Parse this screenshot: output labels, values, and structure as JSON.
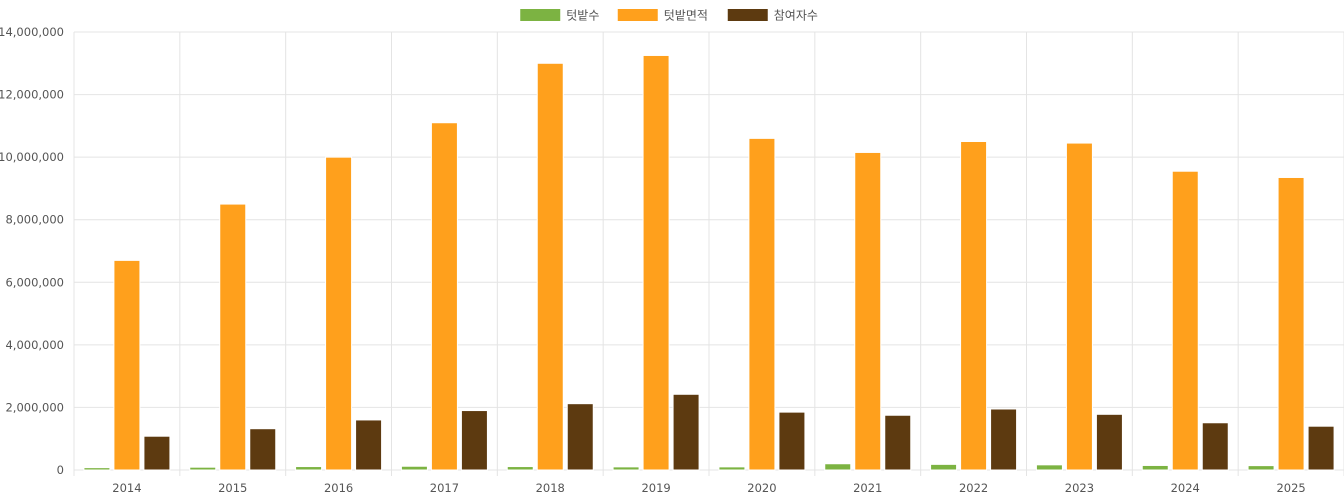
{
  "chart_data": {
    "type": "bar",
    "title": "",
    "xlabel": "",
    "ylabel": "",
    "ylim": [
      0,
      14000000
    ],
    "yticks": [
      0,
      2000000,
      4000000,
      6000000,
      8000000,
      10000000,
      12000000,
      14000000
    ],
    "grid": true,
    "legend_position": "top-center",
    "categories": [
      "2014",
      "2015",
      "2016",
      "2017",
      "2018",
      "2019",
      "2020",
      "2021",
      "2022",
      "2023",
      "2024",
      "2025"
    ],
    "series": [
      {
        "name": "텃밭수",
        "color": "#7cb342",
        "values": [
          75000,
          90000,
          110000,
          120000,
          110000,
          100000,
          100000,
          200000,
          180000,
          165000,
          145000,
          140000
        ]
      },
      {
        "name": "텃밭면적",
        "color": "#ffa01c",
        "values": [
          6700000,
          8500000,
          10000000,
          11100000,
          13000000,
          13250000,
          10600000,
          10150000,
          10500000,
          10450000,
          9550000,
          9350000
        ]
      },
      {
        "name": "참여자수",
        "color": "#5d3a10",
        "values": [
          1080000,
          1320000,
          1600000,
          1900000,
          2120000,
          2420000,
          1850000,
          1750000,
          1950000,
          1780000,
          1510000,
          1400000
        ]
      }
    ]
  }
}
